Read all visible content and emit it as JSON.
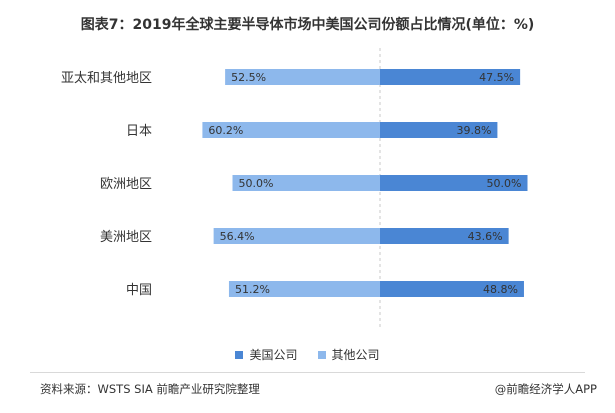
{
  "title": "图表7：2019年全球主要半导体市场中美国公司份额占比情况(单位：%)",
  "source": "资料来源：WSTS SIA 前瞻产业研究院整理",
  "credit": "@前瞻经济学人APP",
  "colors": {
    "us": "#4a86d4",
    "other": "#8db8ec",
    "axis": "#c8c8c8",
    "label": "#333333"
  },
  "chart_data": {
    "type": "bar",
    "orientation": "horizontal-diverging",
    "categories": [
      "亚太和其他地区",
      "日本",
      "欧洲地区",
      "美洲地区",
      "中国"
    ],
    "series": [
      {
        "name": "美国公司",
        "values": [
          47.5,
          39.8,
          50.0,
          43.6,
          48.8
        ]
      },
      {
        "name": "其他公司",
        "values": [
          52.5,
          60.2,
          50.0,
          56.4,
          51.2
        ]
      }
    ],
    "value_labels": {
      "us": [
        "47.5%",
        "39.8%",
        "50.0%",
        "43.6%",
        "48.8%"
      ],
      "other": [
        "52.5%",
        "60.2%",
        "50.0%",
        "56.4%",
        "51.2%"
      ]
    },
    "legend": [
      "美国公司",
      "其他公司"
    ],
    "legend_position": "bottom"
  }
}
